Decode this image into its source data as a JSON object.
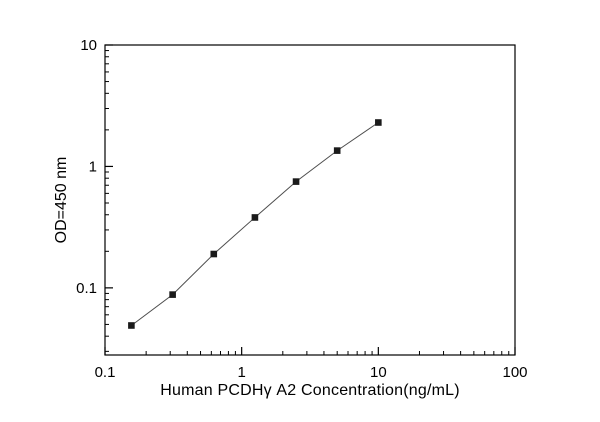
{
  "chart_data": {
    "type": "line",
    "x": [
      0.156,
      0.3125,
      0.625,
      1.25,
      2.5,
      5,
      10
    ],
    "y": [
      0.049,
      0.088,
      0.19,
      0.38,
      0.75,
      1.35,
      2.3
    ],
    "title": "",
    "xlabel": "Human PCDHγ A2 Concentration(ng/mL)",
    "ylabel": "OD=450 nm",
    "xscale": "log",
    "yscale": "log",
    "xlim": [
      0.1,
      100
    ],
    "ylim": [
      0.028,
      10
    ],
    "x_ticks": [
      0.1,
      1,
      10,
      100
    ],
    "y_ticks": [
      0.1,
      1,
      10
    ],
    "marker": "square",
    "marker_color": "#1a1a1a",
    "line_color": "#4d4d4d",
    "axis_color": "#000000",
    "background": "#ffffff",
    "grid": false,
    "legend": false
  }
}
